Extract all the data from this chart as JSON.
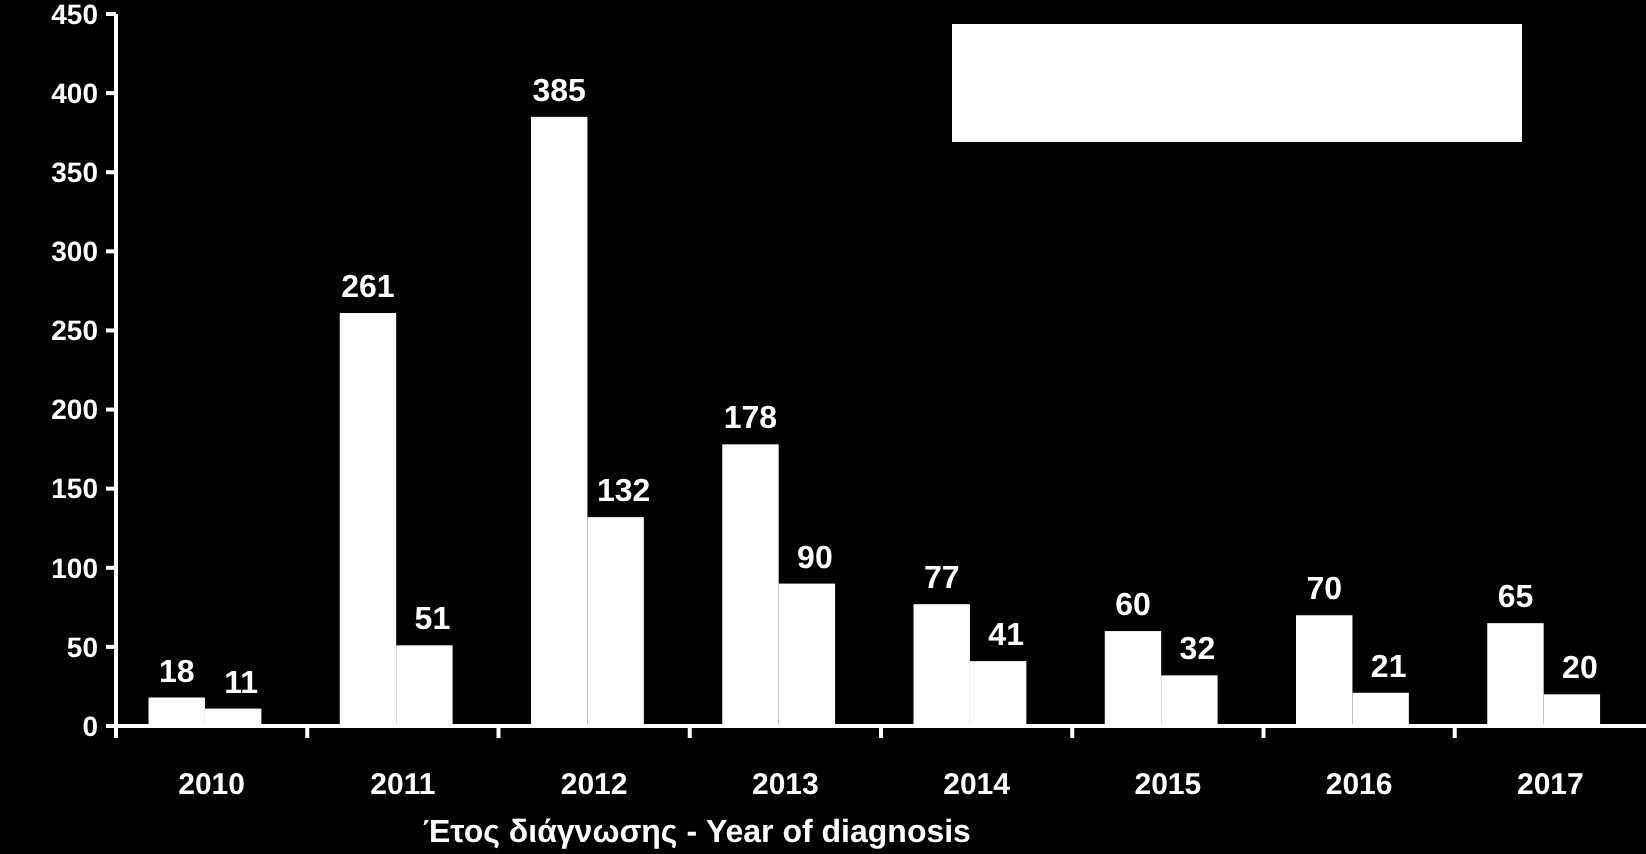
{
  "chart_data": {
    "type": "bar",
    "xlabel": "Έτος διάγνωσης - Year of diagnosis",
    "categories": [
      "2010",
      "2011",
      "2012",
      "2013",
      "2014",
      "2015",
      "2016",
      "2017"
    ],
    "series": [
      {
        "color": "#ffffff",
        "values": [
          18,
          261,
          385,
          178,
          77,
          60,
          70,
          65
        ]
      },
      {
        "color": "#ffffff",
        "values": [
          11,
          51,
          132,
          90,
          41,
          32,
          21,
          20
        ]
      }
    ],
    "ylim": [
      0,
      450
    ],
    "yticks": [
      0,
      50,
      100,
      150,
      200,
      250,
      300,
      350,
      400,
      450
    ],
    "data_labels": true
  }
}
